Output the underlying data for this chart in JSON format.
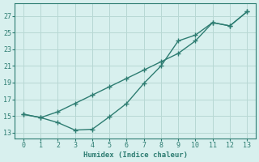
{
  "line1_x": [
    0,
    1,
    2,
    3,
    4,
    5,
    6,
    7,
    8,
    9,
    10,
    11,
    12,
    13
  ],
  "line1_y": [
    15.2,
    14.8,
    15.5,
    16.5,
    17.5,
    18.5,
    19.5,
    20.5,
    21.5,
    22.5,
    24.0,
    26.2,
    25.8,
    27.5
  ],
  "line2_x": [
    0,
    1,
    2,
    3,
    4,
    5,
    6,
    7,
    8,
    9,
    10,
    11,
    12,
    13
  ],
  "line2_y": [
    15.2,
    14.8,
    14.2,
    13.3,
    13.4,
    14.9,
    16.5,
    18.9,
    21.0,
    24.0,
    24.7,
    26.2,
    25.8,
    27.5
  ],
  "color": "#2e7d72",
  "bg_color": "#d8f0ee",
  "grid_color": "#b8d8d4",
  "xlabel": "Humidex (Indice chaleur)",
  "yticks": [
    13,
    15,
    17,
    19,
    21,
    23,
    25,
    27
  ],
  "xticks": [
    0,
    1,
    2,
    3,
    4,
    5,
    6,
    7,
    8,
    9,
    10,
    11,
    12,
    13
  ],
  "xlim": [
    -0.5,
    13.5
  ],
  "ylim": [
    12.3,
    28.5
  ],
  "marker": "+",
  "markersize": 5,
  "linewidth": 1.0
}
